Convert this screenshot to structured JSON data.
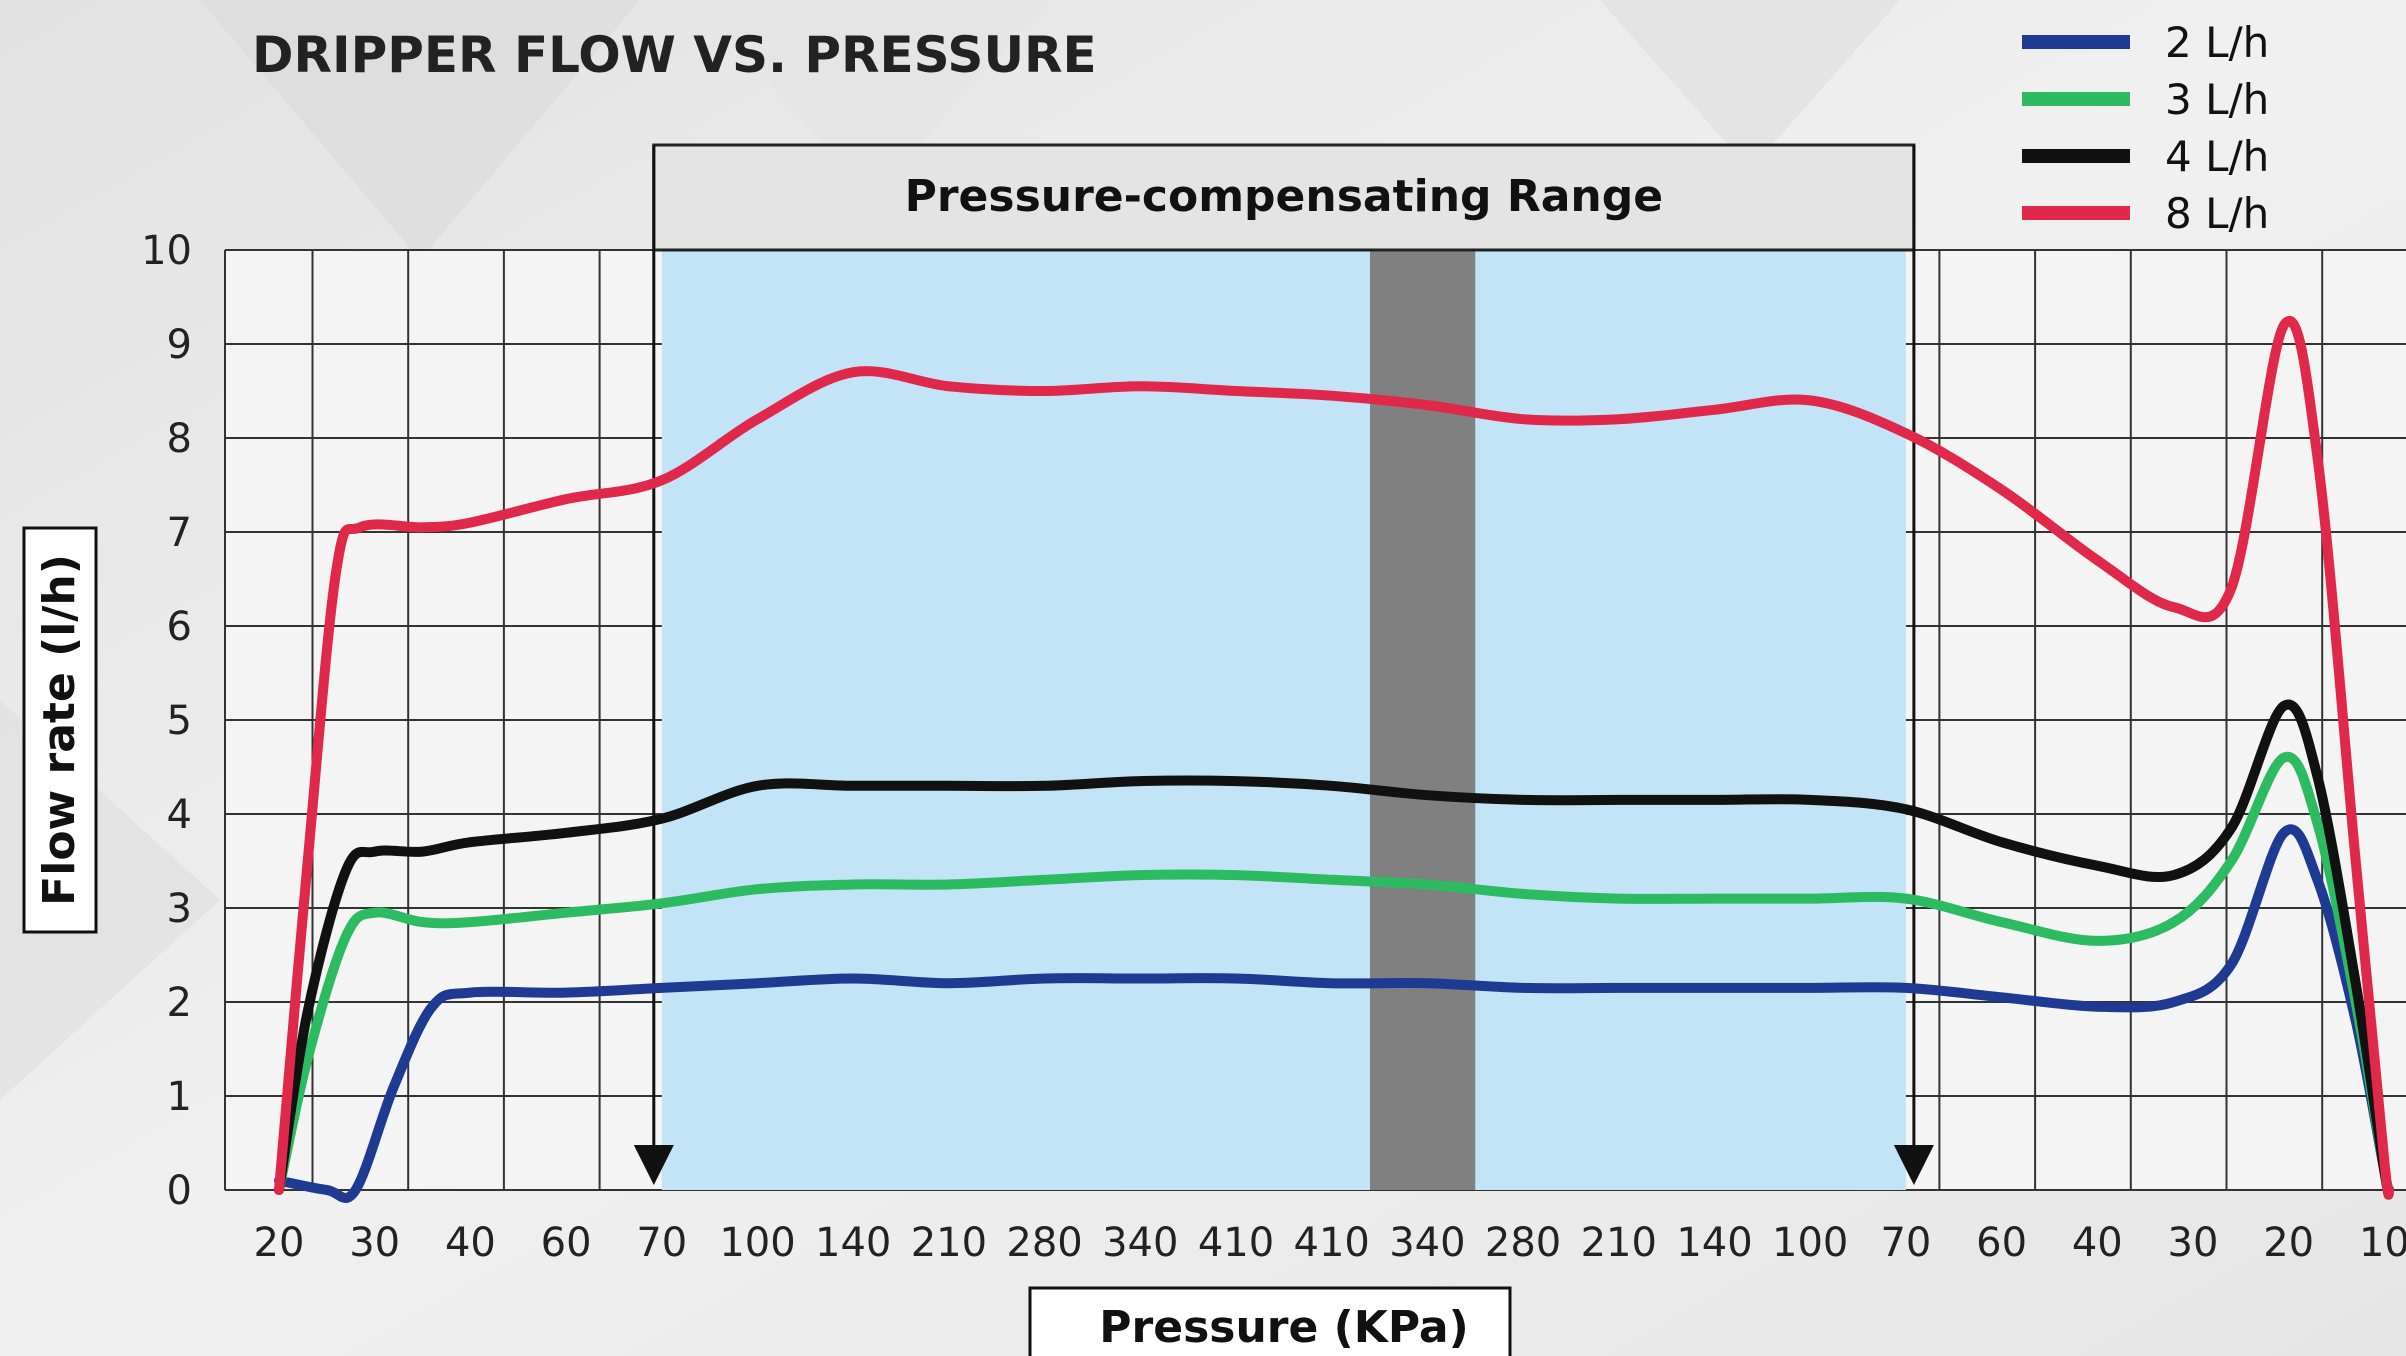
{
  "chart_data": {
    "type": "line",
    "title": "DRIPPER FLOW VS. PRESSURE",
    "xlabel": "Pressure (KPa)",
    "ylabel": "Flow rate (l/h)",
    "x_ticks": [
      "20",
      "30",
      "40",
      "60",
      "70",
      "100",
      "140",
      "210",
      "280",
      "340",
      "410",
      "410",
      "340",
      "280",
      "210",
      "140",
      "100",
      "70",
      "60",
      "40",
      "30",
      "20",
      "10"
    ],
    "ylim": [
      0,
      10
    ],
    "y_ticks": [
      0,
      1,
      2,
      3,
      4,
      5,
      6,
      7,
      8,
      9,
      10
    ],
    "grid": true,
    "legend_position": "top-right",
    "annotation": {
      "label": "Pressure-compensating Range",
      "from_tick": "70",
      "to_tick": "70"
    },
    "series": [
      {
        "name": "2 L/h",
        "color": "#1f3a93",
        "points": [
          [
            0,
            0.1
          ],
          [
            0.5,
            0
          ],
          [
            0.8,
            0
          ],
          [
            1.2,
            1.1
          ],
          [
            1.6,
            1.95
          ],
          [
            2,
            2.1
          ],
          [
            3,
            2.1
          ],
          [
            4,
            2.15
          ],
          [
            5,
            2.2
          ],
          [
            6,
            2.25
          ],
          [
            7,
            2.2
          ],
          [
            8,
            2.25
          ],
          [
            9,
            2.25
          ],
          [
            10,
            2.25
          ],
          [
            11,
            2.2
          ],
          [
            12,
            2.2
          ],
          [
            13,
            2.15
          ],
          [
            14,
            2.15
          ],
          [
            15,
            2.15
          ],
          [
            16,
            2.15
          ],
          [
            17,
            2.15
          ],
          [
            18,
            2.05
          ],
          [
            19,
            1.95
          ],
          [
            19.8,
            2.0
          ],
          [
            20.4,
            2.4
          ],
          [
            20.95,
            3.8
          ],
          [
            21.3,
            3.3
          ],
          [
            21.7,
            1.8
          ],
          [
            22,
            0.2
          ],
          [
            22.05,
            0
          ]
        ]
      },
      {
        "name": "3 L/h",
        "color": "#2dbb62",
        "points": [
          [
            0,
            0
          ],
          [
            0.3,
            1.4
          ],
          [
            0.7,
            2.7
          ],
          [
            1,
            2.95
          ],
          [
            1.5,
            2.85
          ],
          [
            2,
            2.85
          ],
          [
            3,
            2.95
          ],
          [
            4,
            3.05
          ],
          [
            5,
            3.2
          ],
          [
            6,
            3.25
          ],
          [
            7,
            3.25
          ],
          [
            8,
            3.3
          ],
          [
            9,
            3.35
          ],
          [
            10,
            3.35
          ],
          [
            11,
            3.3
          ],
          [
            12,
            3.25
          ],
          [
            13,
            3.15
          ],
          [
            14,
            3.1
          ],
          [
            15,
            3.1
          ],
          [
            16,
            3.1
          ],
          [
            17,
            3.1
          ],
          [
            18,
            2.85
          ],
          [
            19,
            2.65
          ],
          [
            19.8,
            2.85
          ],
          [
            20.4,
            3.5
          ],
          [
            20.95,
            4.6
          ],
          [
            21.3,
            3.9
          ],
          [
            21.7,
            2.0
          ],
          [
            22,
            0.2
          ],
          [
            22.05,
            0
          ]
        ]
      },
      {
        "name": "4 L/h",
        "color": "#111111",
        "points": [
          [
            0,
            0
          ],
          [
            0.3,
            1.9
          ],
          [
            0.7,
            3.4
          ],
          [
            1,
            3.6
          ],
          [
            1.5,
            3.6
          ],
          [
            2,
            3.7
          ],
          [
            3,
            3.8
          ],
          [
            4,
            3.95
          ],
          [
            5,
            4.3
          ],
          [
            6,
            4.3
          ],
          [
            7,
            4.3
          ],
          [
            8,
            4.3
          ],
          [
            9,
            4.35
          ],
          [
            10,
            4.35
          ],
          [
            11,
            4.3
          ],
          [
            12,
            4.2
          ],
          [
            13,
            4.15
          ],
          [
            14,
            4.15
          ],
          [
            15,
            4.15
          ],
          [
            16,
            4.15
          ],
          [
            17,
            4.05
          ],
          [
            18,
            3.7
          ],
          [
            19,
            3.45
          ],
          [
            19.8,
            3.35
          ],
          [
            20.4,
            3.85
          ],
          [
            20.95,
            5.15
          ],
          [
            21.3,
            4.4
          ],
          [
            21.7,
            2.2
          ],
          [
            22,
            0.2
          ],
          [
            22.05,
            0
          ]
        ]
      },
      {
        "name": "8 L/h",
        "color": "#e0284a",
        "points": [
          [
            0,
            0
          ],
          [
            0.3,
            3.5
          ],
          [
            0.6,
            6.6
          ],
          [
            0.85,
            7.05
          ],
          [
            1.5,
            7.05
          ],
          [
            2,
            7.1
          ],
          [
            3,
            7.35
          ],
          [
            4,
            7.55
          ],
          [
            5,
            8.2
          ],
          [
            6,
            8.7
          ],
          [
            7,
            8.55
          ],
          [
            8,
            8.5
          ],
          [
            9,
            8.55
          ],
          [
            10,
            8.5
          ],
          [
            11,
            8.45
          ],
          [
            12,
            8.35
          ],
          [
            13,
            8.2
          ],
          [
            14,
            8.2
          ],
          [
            15,
            8.3
          ],
          [
            16,
            8.4
          ],
          [
            17,
            8.05
          ],
          [
            18,
            7.45
          ],
          [
            19,
            6.7
          ],
          [
            19.8,
            6.2
          ],
          [
            20.4,
            6.4
          ],
          [
            20.95,
            9.2
          ],
          [
            21.3,
            7.8
          ],
          [
            21.7,
            3.5
          ],
          [
            22,
            0.3
          ],
          [
            22.05,
            0
          ]
        ]
      }
    ]
  }
}
